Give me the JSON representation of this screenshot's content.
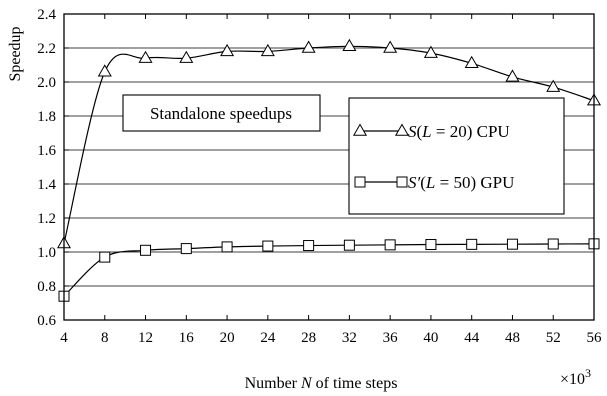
{
  "chart_data": {
    "type": "line",
    "xlabel": "Number N of time steps",
    "ylabel": "Speedup",
    "x_multiplier": "×10^3",
    "xlim": [
      4,
      56
    ],
    "ylim": [
      0.6,
      2.4
    ],
    "x_ticks": [
      4,
      8,
      12,
      16,
      20,
      24,
      28,
      32,
      36,
      40,
      44,
      48,
      52,
      56
    ],
    "y_ticks": [
      0.6,
      0.8,
      1.0,
      1.2,
      1.4,
      1.6,
      1.8,
      2.0,
      2.2,
      2.4
    ],
    "grid": "horizontal",
    "annotation": "Standalone speedups",
    "legend_position": "center-right",
    "x": [
      4,
      8,
      12,
      16,
      20,
      24,
      28,
      32,
      36,
      40,
      44,
      48,
      52,
      56
    ],
    "series": [
      {
        "name": "S(L = 20) CPU",
        "marker": "triangle",
        "values": [
          1.05,
          2.06,
          2.14,
          2.14,
          2.18,
          2.18,
          2.2,
          2.21,
          2.2,
          2.17,
          2.11,
          2.03,
          1.97,
          1.89
        ]
      },
      {
        "name": "S′(L = 50) GPU",
        "marker": "square",
        "values": [
          0.74,
          0.97,
          1.01,
          1.02,
          1.03,
          1.035,
          1.038,
          1.04,
          1.042,
          1.044,
          1.045,
          1.046,
          1.047,
          1.048
        ]
      }
    ]
  }
}
